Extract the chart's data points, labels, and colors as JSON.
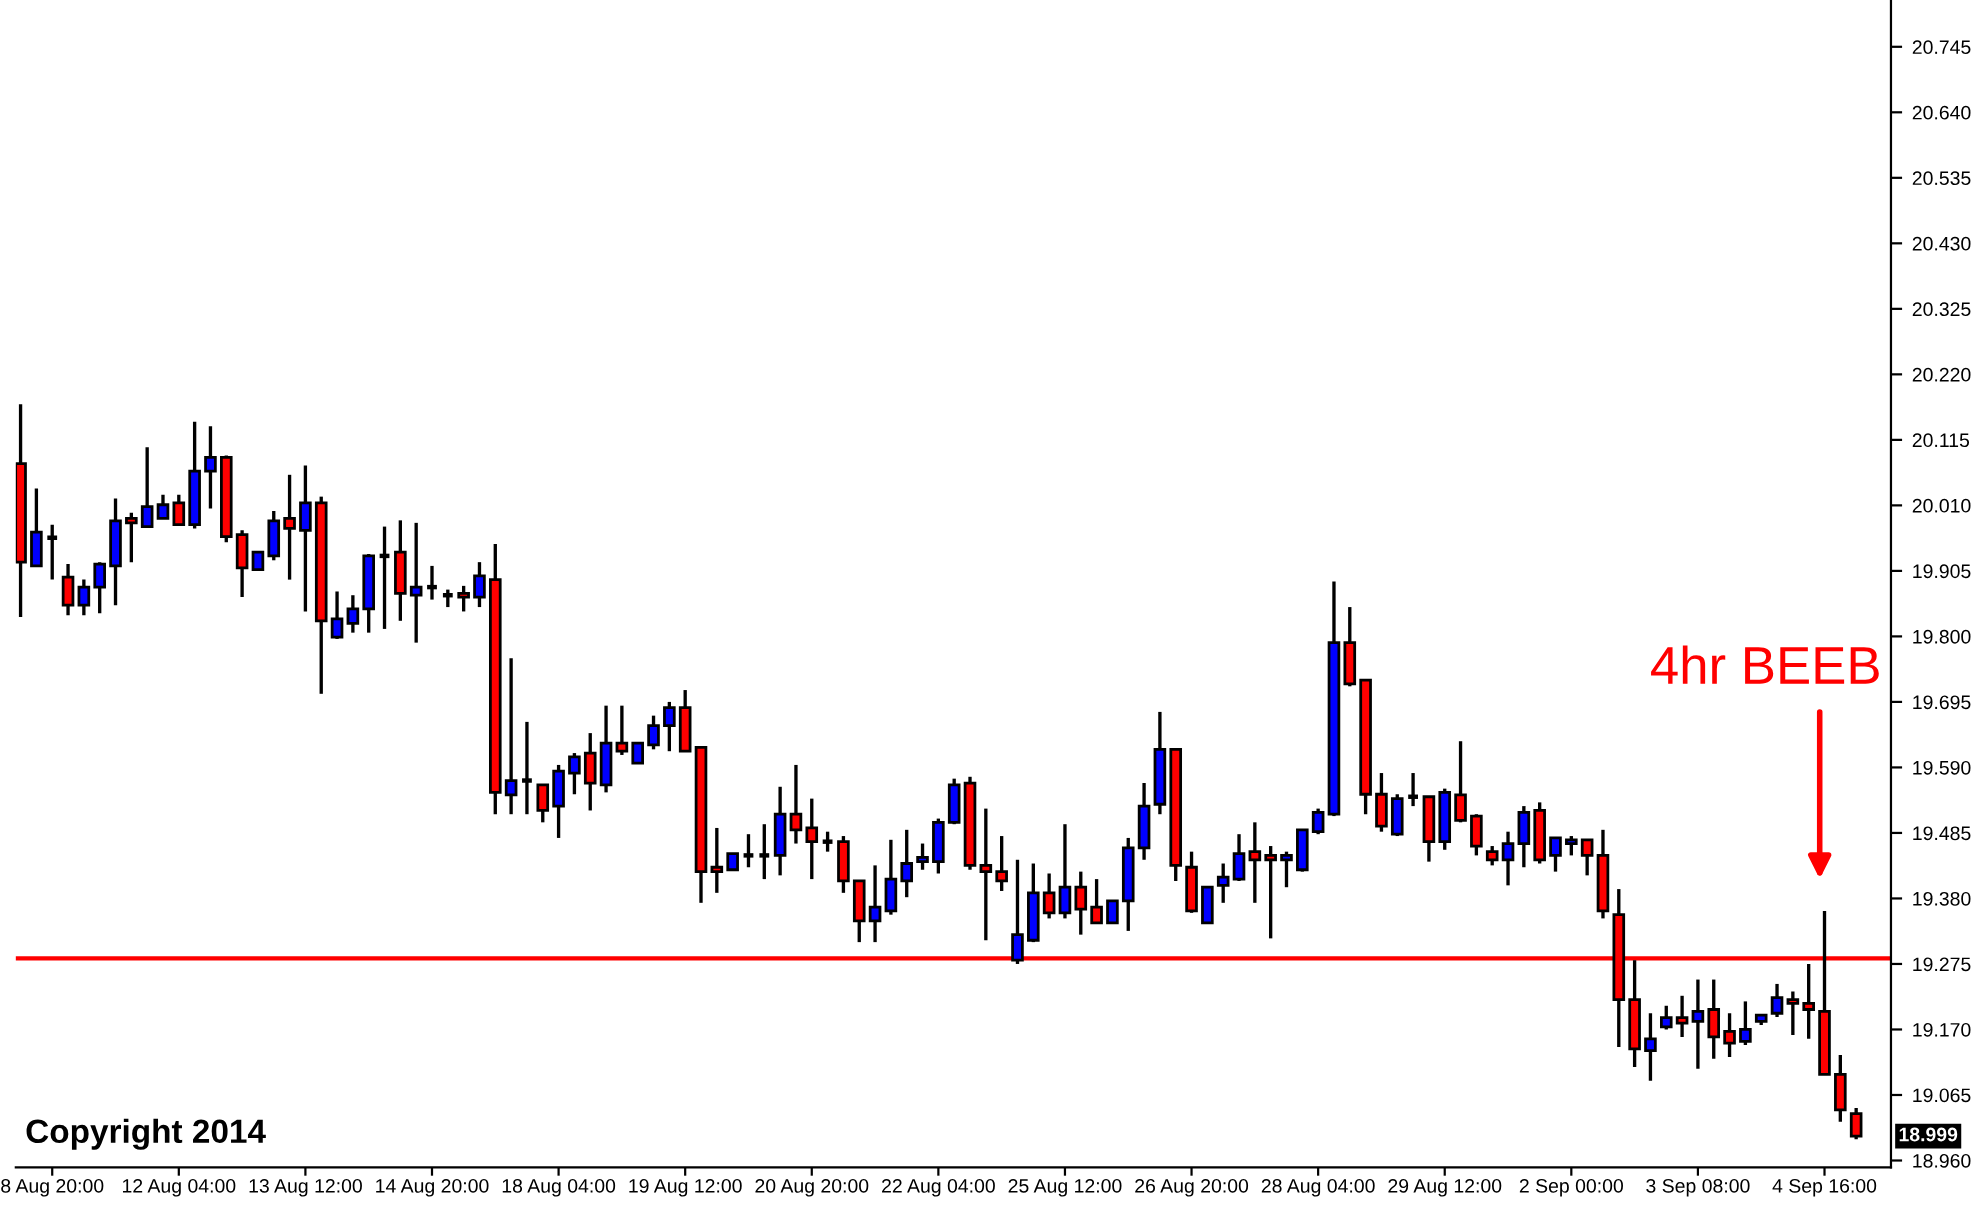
{
  "chart_data": {
    "type": "candlestick",
    "categories": [
      null,
      null,
      "8 Aug 20:00",
      null,
      null,
      null,
      null,
      null,
      null,
      null,
      "12 Aug 04:00",
      null,
      null,
      null,
      null,
      null,
      null,
      null,
      "13 Aug 12:00",
      null,
      null,
      null,
      null,
      null,
      null,
      null,
      "14 Aug 20:00",
      null,
      null,
      null,
      null,
      null,
      null,
      null,
      "18 Aug 04:00",
      null,
      null,
      null,
      null,
      null,
      null,
      null,
      "19 Aug 12:00",
      null,
      null,
      null,
      null,
      null,
      null,
      null,
      "20 Aug 20:00",
      null,
      null,
      null,
      null,
      null,
      null,
      null,
      "22 Aug 04:00",
      null,
      null,
      null,
      null,
      null,
      null,
      null,
      "25 Aug 12:00",
      null,
      null,
      null,
      null,
      null,
      null,
      null,
      "26 Aug 20:00",
      null,
      null,
      null,
      null,
      null,
      null,
      null,
      "28 Aug 04:00",
      null,
      null,
      null,
      null,
      null,
      null,
      null,
      "29 Aug 12:00",
      null,
      null,
      null,
      null,
      null,
      null,
      null,
      "2 Sep 00:00",
      null,
      null,
      null,
      null,
      null,
      null,
      null,
      "3 Sep 08:00",
      null,
      null,
      null,
      null,
      null,
      null,
      null,
      "4 Sep 16:00",
      null,
      null
    ],
    "ohlc": [
      [
        20.077,
        20.172,
        19.831,
        19.919
      ],
      [
        19.913,
        20.037,
        19.913,
        19.967
      ],
      [
        19.958,
        19.979,
        19.891,
        19.958
      ],
      [
        19.895,
        19.916,
        19.834,
        19.85
      ],
      [
        19.85,
        19.891,
        19.834,
        19.879
      ],
      [
        19.879,
        19.919,
        19.837,
        19.916
      ],
      [
        19.913,
        20.021,
        19.85,
        19.985
      ],
      [
        19.989,
        19.998,
        19.919,
        19.982
      ],
      [
        19.976,
        20.103,
        19.976,
        20.008
      ],
      [
        19.989,
        20.027,
        19.989,
        20.011
      ],
      [
        20.014,
        20.027,
        19.979,
        19.979
      ],
      [
        19.979,
        20.144,
        19.973,
        20.065
      ],
      [
        20.065,
        20.137,
        20.005,
        20.087
      ],
      [
        20.087,
        20.09,
        19.951,
        19.96
      ],
      [
        19.963,
        19.97,
        19.863,
        19.91
      ],
      [
        19.907,
        19.935,
        19.907,
        19.935
      ],
      [
        19.929,
        20.001,
        19.922,
        19.985
      ],
      [
        19.989,
        20.059,
        19.891,
        19.973
      ],
      [
        19.97,
        20.074,
        19.84,
        20.014
      ],
      [
        20.014,
        20.024,
        19.708,
        19.825
      ],
      [
        19.799,
        19.872,
        19.796,
        19.828
      ],
      [
        19.821,
        19.866,
        19.806,
        19.844
      ],
      [
        19.844,
        19.932,
        19.806,
        19.929
      ],
      [
        19.929,
        19.976,
        19.812,
        19.929
      ],
      [
        19.935,
        19.986,
        19.825,
        19.869
      ],
      [
        19.866,
        19.982,
        19.79,
        19.879
      ],
      [
        19.879,
        19.913,
        19.859,
        19.879
      ],
      [
        19.866,
        19.875,
        19.847,
        19.866
      ],
      [
        19.869,
        19.881,
        19.84,
        19.863
      ],
      [
        19.863,
        19.919,
        19.847,
        19.897
      ],
      [
        19.891,
        19.948,
        19.515,
        19.55
      ],
      [
        19.546,
        19.765,
        19.515,
        19.569
      ],
      [
        19.569,
        19.663,
        19.515,
        19.569
      ],
      [
        19.562,
        19.562,
        19.502,
        19.521
      ],
      [
        19.528,
        19.594,
        19.477,
        19.584
      ],
      [
        19.581,
        19.613,
        19.547,
        19.607
      ],
      [
        19.613,
        19.645,
        19.521,
        19.565
      ],
      [
        19.562,
        19.689,
        19.55,
        19.629
      ],
      [
        19.629,
        19.689,
        19.61,
        19.616
      ],
      [
        19.597,
        19.629,
        19.597,
        19.629
      ],
      [
        19.626,
        19.673,
        19.619,
        19.657
      ],
      [
        19.657,
        19.695,
        19.616,
        19.686
      ],
      [
        19.686,
        19.714,
        19.616,
        19.616
      ],
      [
        19.622,
        19.622,
        19.373,
        19.423
      ],
      [
        19.43,
        19.493,
        19.389,
        19.423
      ],
      [
        19.426,
        19.452,
        19.426,
        19.452
      ],
      [
        19.449,
        19.483,
        19.43,
        19.449
      ],
      [
        19.449,
        19.499,
        19.411,
        19.449
      ],
      [
        19.449,
        19.559,
        19.417,
        19.515
      ],
      [
        19.515,
        19.594,
        19.468,
        19.49
      ],
      [
        19.493,
        19.54,
        19.411,
        19.471
      ],
      [
        19.471,
        19.487,
        19.455,
        19.471
      ],
      [
        19.471,
        19.48,
        19.389,
        19.408
      ],
      [
        19.408,
        19.408,
        19.31,
        19.344
      ],
      [
        19.344,
        19.433,
        19.31,
        19.366
      ],
      [
        19.36,
        19.474,
        19.354,
        19.411
      ],
      [
        19.408,
        19.49,
        19.382,
        19.436
      ],
      [
        19.439,
        19.468,
        19.426,
        19.446
      ],
      [
        19.439,
        19.508,
        19.42,
        19.502
      ],
      [
        19.502,
        19.572,
        19.499,
        19.562
      ],
      [
        19.565,
        19.575,
        19.426,
        19.433
      ],
      [
        19.433,
        19.524,
        19.313,
        19.423
      ],
      [
        19.423,
        19.48,
        19.392,
        19.408
      ],
      [
        19.281,
        19.442,
        19.275,
        19.322
      ],
      [
        19.313,
        19.436,
        19.31,
        19.389
      ],
      [
        19.389,
        19.42,
        19.348,
        19.357
      ],
      [
        19.357,
        19.499,
        19.348,
        19.398
      ],
      [
        19.398,
        19.423,
        19.322,
        19.363
      ],
      [
        19.366,
        19.411,
        19.341,
        19.341
      ],
      [
        19.341,
        19.376,
        19.341,
        19.376
      ],
      [
        19.376,
        19.477,
        19.328,
        19.461
      ],
      [
        19.461,
        19.565,
        19.442,
        19.528
      ],
      [
        19.531,
        19.679,
        19.515,
        19.619
      ],
      [
        19.619,
        19.619,
        19.408,
        19.433
      ],
      [
        19.43,
        19.455,
        19.357,
        19.36
      ],
      [
        19.341,
        19.398,
        19.341,
        19.398
      ],
      [
        19.401,
        19.436,
        19.373,
        19.414
      ],
      [
        19.411,
        19.483,
        19.408,
        19.452
      ],
      [
        19.455,
        19.502,
        19.373,
        19.442
      ],
      [
        19.449,
        19.464,
        19.316,
        19.442
      ],
      [
        19.442,
        19.455,
        19.398,
        19.449
      ],
      [
        19.426,
        19.49,
        19.423,
        19.49
      ],
      [
        19.487,
        19.524,
        19.483,
        19.518
      ],
      [
        19.515,
        19.888,
        19.512,
        19.79
      ],
      [
        19.79,
        19.847,
        19.72,
        19.724
      ],
      [
        19.73,
        19.73,
        19.515,
        19.547
      ],
      [
        19.547,
        19.581,
        19.487,
        19.496
      ],
      [
        19.483,
        19.547,
        19.48,
        19.54
      ],
      [
        19.543,
        19.581,
        19.528,
        19.543
      ],
      [
        19.543,
        19.543,
        19.439,
        19.471
      ],
      [
        19.471,
        19.556,
        19.458,
        19.55
      ],
      [
        19.546,
        19.632,
        19.502,
        19.505
      ],
      [
        19.512,
        19.515,
        19.449,
        19.464
      ],
      [
        19.455,
        19.464,
        19.433,
        19.442
      ],
      [
        19.442,
        19.487,
        19.401,
        19.468
      ],
      [
        19.468,
        19.528,
        19.43,
        19.518
      ],
      [
        19.521,
        19.534,
        19.436,
        19.442
      ],
      [
        19.449,
        19.477,
        19.423,
        19.477
      ],
      [
        19.468,
        19.48,
        19.449,
        19.474
      ],
      [
        19.474,
        19.474,
        19.417,
        19.449
      ],
      [
        19.449,
        19.49,
        19.348,
        19.36
      ],
      [
        19.354,
        19.395,
        19.142,
        19.218
      ],
      [
        19.218,
        19.281,
        19.11,
        19.139
      ],
      [
        19.136,
        19.196,
        19.088,
        19.155
      ],
      [
        19.174,
        19.208,
        19.17,
        19.189
      ],
      [
        19.189,
        19.224,
        19.158,
        19.18
      ],
      [
        19.183,
        19.25,
        19.107,
        19.199
      ],
      [
        19.202,
        19.25,
        19.123,
        19.158
      ],
      [
        19.167,
        19.196,
        19.126,
        19.148
      ],
      [
        19.151,
        19.215,
        19.145,
        19.17
      ],
      [
        19.183,
        19.193,
        19.177,
        19.193
      ],
      [
        19.196,
        19.243,
        19.19,
        19.221
      ],
      [
        19.218,
        19.231,
        19.161,
        19.212
      ],
      [
        19.212,
        19.275,
        19.155,
        19.202
      ],
      [
        19.199,
        19.36,
        19.098,
        19.098
      ],
      [
        19.098,
        19.129,
        19.022,
        19.041
      ],
      [
        19.035,
        19.044,
        18.994,
        18.999
      ]
    ],
    "colors": [
      "#ff0000",
      "#0000ff",
      "#000000",
      "#ff0000",
      "#0000ff",
      "#0000ff",
      "#0000ff",
      "#ff0000",
      "#0000ff",
      "#0000ff",
      "#ff0000",
      "#0000ff",
      "#0000ff",
      "#ff0000",
      "#ff0000",
      "#0000ff",
      "#0000ff",
      "#ff0000",
      "#0000ff",
      "#ff0000",
      "#0000ff",
      "#0000ff",
      "#0000ff",
      "#000000",
      "#ff0000",
      "#0000ff",
      "#000000",
      "#000000",
      "#ff0000",
      "#0000ff",
      "#ff0000",
      "#0000ff",
      "#000000",
      "#ff0000",
      "#0000ff",
      "#0000ff",
      "#ff0000",
      "#0000ff",
      "#ff0000",
      "#0000ff",
      "#0000ff",
      "#0000ff",
      "#ff0000",
      "#ff0000",
      "#ff0000",
      "#0000ff",
      "#000000",
      "#000000",
      "#0000ff",
      "#ff0000",
      "#ff0000",
      "#000000",
      "#ff0000",
      "#ff0000",
      "#0000ff",
      "#0000ff",
      "#0000ff",
      "#0000ff",
      "#0000ff",
      "#0000ff",
      "#ff0000",
      "#ff0000",
      "#ff0000",
      "#0000ff",
      "#0000ff",
      "#ff0000",
      "#0000ff",
      "#ff0000",
      "#ff0000",
      "#0000ff",
      "#0000ff",
      "#0000ff",
      "#0000ff",
      "#ff0000",
      "#ff0000",
      "#0000ff",
      "#0000ff",
      "#0000ff",
      "#ff0000",
      "#ff0000",
      "#0000ff",
      "#0000ff",
      "#0000ff",
      "#0000ff",
      "#ff0000",
      "#ff0000",
      "#ff0000",
      "#0000ff",
      "#000000",
      "#ff0000",
      "#0000ff",
      "#ff0000",
      "#ff0000",
      "#ff0000",
      "#0000ff",
      "#0000ff",
      "#ff0000",
      "#0000ff",
      "#0000ff",
      "#ff0000",
      "#ff0000",
      "#ff0000",
      "#ff0000",
      "#0000ff",
      "#0000ff",
      "#ff0000",
      "#0000ff",
      "#ff0000",
      "#ff0000",
      "#0000ff",
      "#0000ff",
      "#0000ff",
      "#ff0000",
      "#ff0000",
      "#ff0000",
      "#ff0000",
      "#ff0000"
    ],
    "ylim": [
      18.949,
      20.82
    ],
    "yticks": [
      {
        "value": 18.96,
        "label": "18.960"
      },
      19.065,
      {
        "value": 19.17,
        "label": "19.170"
      },
      19.275,
      {
        "value": 19.38,
        "label": "19.380"
      },
      19.485,
      {
        "value": 19.59,
        "label": "19.590"
      },
      19.695,
      {
        "value": 19.8,
        "label": "19.800"
      },
      19.905,
      {
        "value": 20.01,
        "label": "20.010"
      },
      20.115,
      {
        "value": 20.22,
        "label": "20.220"
      },
      20.325,
      {
        "value": 20.43,
        "label": "20.430"
      },
      20.535,
      {
        "value": 20.64,
        "label": "20.640"
      },
      20.745
    ],
    "ref_lines": [
      {
        "axis": "y",
        "value": 19.284,
        "color": "#ff0000"
      }
    ],
    "annotations": [
      "4hr BEEB",
      "Copyright 2014",
      "18.999"
    ],
    "grid": false,
    "legend": false
  }
}
